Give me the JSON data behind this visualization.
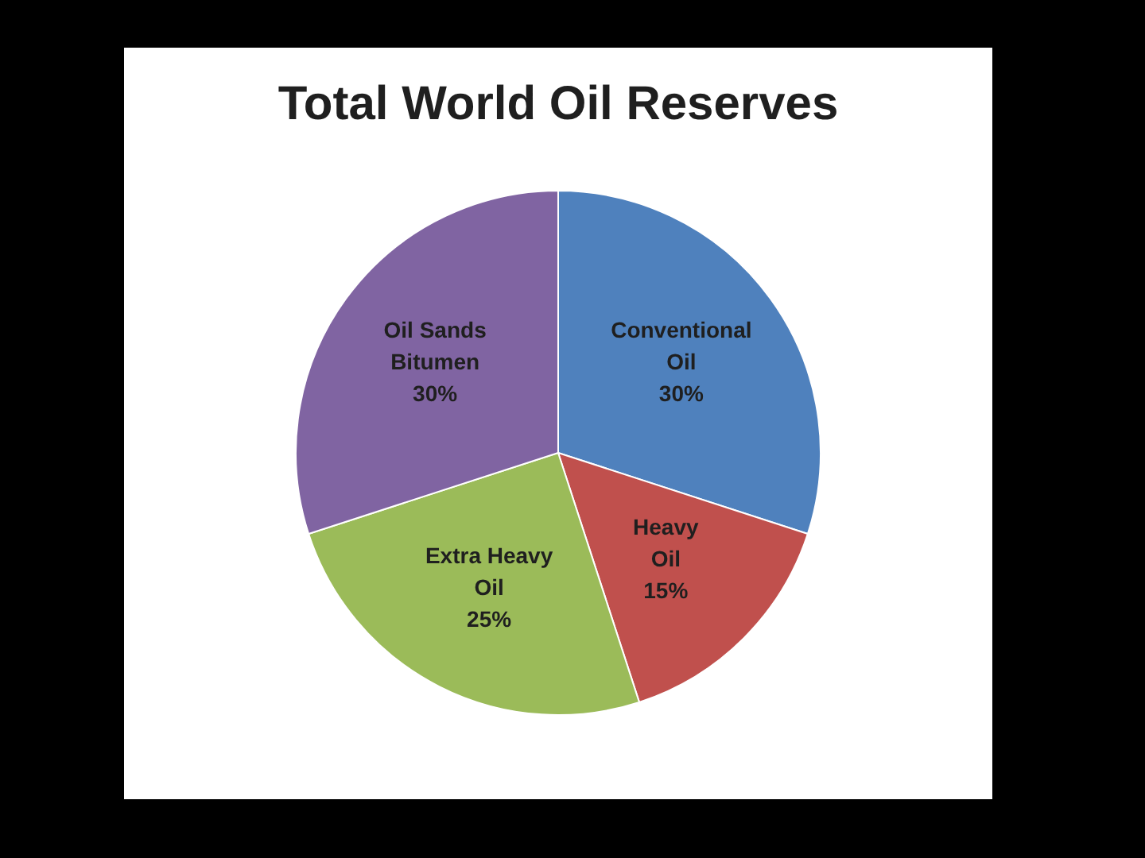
{
  "chart_data": {
    "type": "pie",
    "title": "Total World Oil Reserves",
    "categories": [
      "Conventional Oil",
      "Heavy Oil",
      "Extra Heavy Oil",
      "Oil Sands Bitumen"
    ],
    "values": [
      30,
      15,
      25,
      30
    ],
    "colors": [
      "#4f81bd",
      "#c0504d",
      "#9bbb59",
      "#8064a2"
    ],
    "value_labels": [
      "30%",
      "15%",
      "25%",
      "30%"
    ],
    "legend": false
  }
}
